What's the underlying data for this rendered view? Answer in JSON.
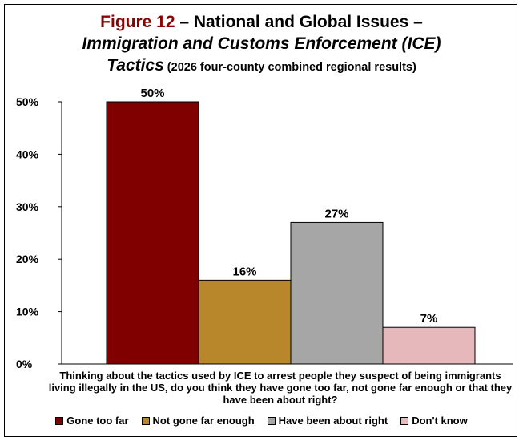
{
  "title": {
    "figure": "Figure 12",
    "line1_rest": " – National and Global Issues –",
    "line2": "Immigration and Customs Enforcement (ICE)",
    "line3_main": "Tactics",
    "line3_sub": " (2026 four-county combined regional results)"
  },
  "chart_data": {
    "type": "bar",
    "categories": [
      "Gone too far",
      "Not gone far enough",
      "Have been about right",
      "Don't know"
    ],
    "values": [
      50,
      16,
      27,
      7
    ],
    "value_labels": [
      "50%",
      "16%",
      "27%",
      "7%"
    ],
    "colors": [
      "#800000",
      "#b8862b",
      "#a6a6a6",
      "#e6b8bc"
    ],
    "ylim": [
      0,
      50
    ],
    "yticks": [
      0,
      10,
      20,
      30,
      40,
      50
    ],
    "ytick_labels": [
      "0%",
      "10%",
      "20%",
      "30%",
      "40%",
      "50%"
    ],
    "xlabel": "Thinking about the tactics used by ICE to arrest people they suspect of being immigrants living illegally in the US, do you think they have gone too far, not gone far enough or that they have been about right?",
    "legend_placement": "bottom",
    "grid": false
  }
}
